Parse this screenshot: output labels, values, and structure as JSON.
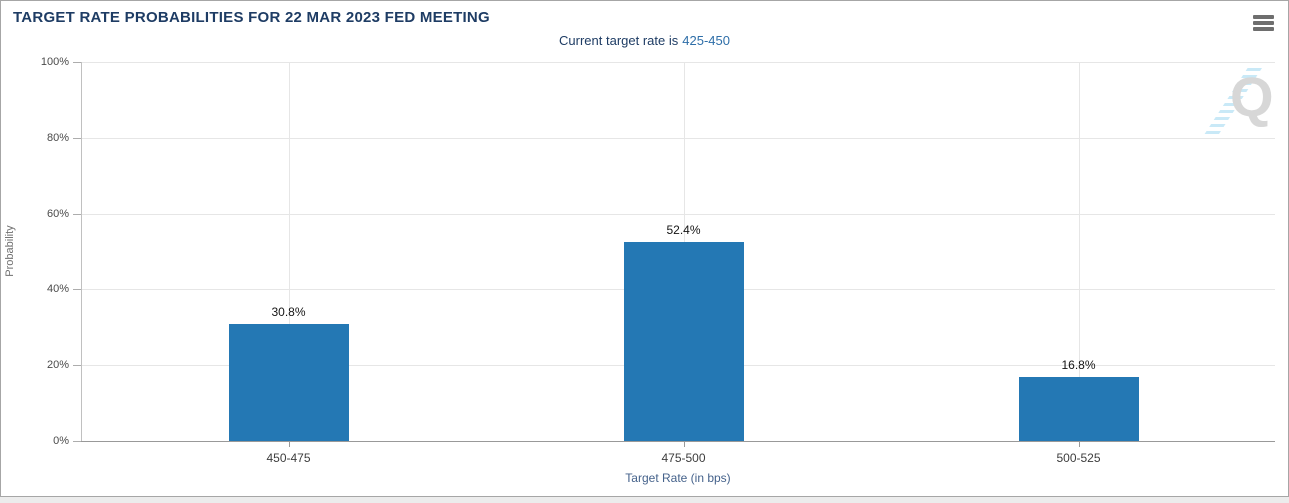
{
  "header": {
    "title": "TARGET RATE PROBABILITIES FOR 22 MAR 2023 FED MEETING",
    "menu_icon": "hamburger-icon"
  },
  "subtitle": {
    "prefix": "Current target rate is",
    "rate": "425-450"
  },
  "watermark": {
    "letter": "Q"
  },
  "colors": {
    "bar": "#2478b4",
    "title_navy": "#1e3c64",
    "rate_link_blue": "#2e6ea8",
    "gridline": "#e6e6e6",
    "card_border": "#a6a6a6"
  },
  "chart_data": {
    "type": "bar",
    "title": "TARGET RATE PROBABILITIES FOR 22 MAR 2023 FED MEETING",
    "subtitle": "Current target rate is 425-450",
    "categories": [
      "450-475",
      "475-500",
      "500-525"
    ],
    "values": [
      30.8,
      52.4,
      16.8
    ],
    "value_labels": [
      "30.8%",
      "52.4%",
      "16.8%"
    ],
    "xlabel": "Target Rate (in bps)",
    "ylabel": "Probability",
    "ylim": [
      0,
      100
    ],
    "y_tick_values": [
      0,
      20,
      40,
      60,
      80,
      100
    ],
    "y_tick_labels": [
      "0%",
      "20%",
      "40%",
      "60%",
      "80%",
      "100%"
    ],
    "grid": "horizontal at 20% steps plus vertical line at each category center",
    "legend": "none",
    "bar_color": "#2478b4"
  }
}
